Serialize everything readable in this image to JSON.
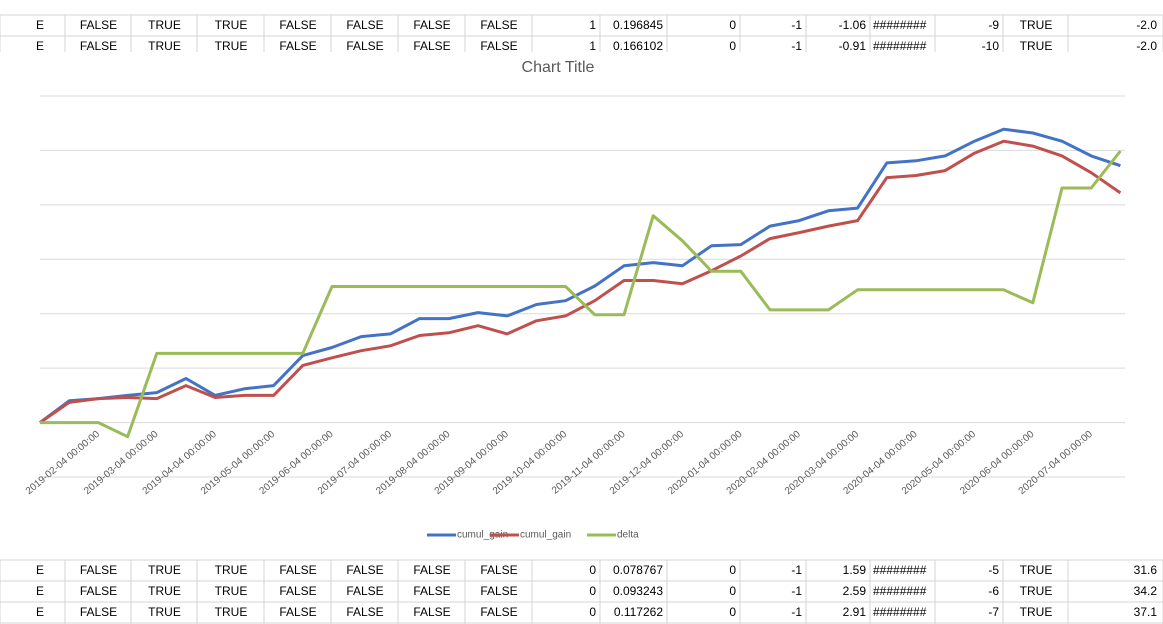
{
  "table": {
    "rows": [
      [
        "E",
        "FALSE",
        "TRUE",
        "TRUE",
        "FALSE",
        "FALSE",
        "FALSE",
        "FALSE",
        "1",
        "0.196845",
        "0",
        "-1",
        "-1.06",
        "########",
        "-9",
        "TRUE",
        "-2.0"
      ],
      [
        "E",
        "FALSE",
        "TRUE",
        "TRUE",
        "FALSE",
        "FALSE",
        "FALSE",
        "FALSE",
        "1",
        "0.166102",
        "0",
        "-1",
        "-0.91",
        "########",
        "-10",
        "TRUE",
        "-2.0"
      ],
      [
        "E",
        "FALSE",
        "TRUE",
        "TRUE",
        "FALSE",
        "FALSE",
        "FALSE",
        "FALSE",
        "0",
        "0.078767",
        "0",
        "-1",
        "1.59",
        "########",
        "-5",
        "TRUE",
        "31.6"
      ],
      [
        "E",
        "FALSE",
        "TRUE",
        "TRUE",
        "FALSE",
        "FALSE",
        "FALSE",
        "FALSE",
        "0",
        "0.093243",
        "0",
        "-1",
        "2.59",
        "########",
        "-6",
        "TRUE",
        "34.2"
      ],
      [
        "E",
        "FALSE",
        "TRUE",
        "TRUE",
        "FALSE",
        "FALSE",
        "FALSE",
        "FALSE",
        "0",
        "0.117262",
        "0",
        "-1",
        "2.91",
        "########",
        "-7",
        "TRUE",
        "37.1"
      ]
    ]
  },
  "chart_data": {
    "type": "line",
    "title": "Chart Title",
    "categories": [
      null,
      null,
      "2019-02-04 00:00:00",
      null,
      "2019-03-04 00:00:00",
      null,
      "2019-04-04 00:00:00",
      null,
      "2019-05-04 00:00:00",
      null,
      "2019-06-04 00:00:00",
      null,
      "2019-07-04 00:00:00",
      null,
      "2019-08-04 00:00:00",
      null,
      "2019-09-04 00:00:00",
      null,
      "2019-10-04 00:00:00",
      null,
      "2019-11-04 00:00:00",
      null,
      "2019-12-04 00:00:00",
      null,
      "2020-01-04 00:00:00",
      null,
      "2020-02-04 00:00:00",
      null,
      "2020-03-04 00:00:00",
      null,
      "2020-04-04 00:00:00",
      null,
      "2020-05-04 00:00:00",
      null,
      "2020-06-04 00:00:00",
      null,
      "2020-07-04 00:00:00",
      null
    ],
    "series": [
      {
        "name": "cumul_gain",
        "color": "#4472c4",
        "values": [
          0,
          0.4,
          0.44,
          0.5,
          0.55,
          0.81,
          0.5,
          0.62,
          0.68,
          1.23,
          1.38,
          1.58,
          1.63,
          1.91,
          1.91,
          2.02,
          1.96,
          2.17,
          2.24,
          2.51,
          2.88,
          2.94,
          2.88,
          3.25,
          3.27,
          3.61,
          3.71,
          3.89,
          3.94,
          4.77,
          4.81,
          4.9,
          5.17,
          5.39,
          5.32,
          5.17,
          4.9,
          4.72
        ]
      },
      {
        "name": "cumul_gain",
        "color": "#c0504d",
        "values": [
          0,
          0.37,
          0.44,
          0.46,
          0.44,
          0.68,
          0.46,
          0.5,
          0.5,
          1.05,
          1.19,
          1.32,
          1.41,
          1.6,
          1.65,
          1.78,
          1.63,
          1.87,
          1.96,
          2.24,
          2.61,
          2.61,
          2.55,
          2.79,
          3.06,
          3.38,
          3.49,
          3.61,
          3.71,
          4.5,
          4.54,
          4.63,
          4.95,
          5.17,
          5.08,
          4.9,
          4.59,
          4.22
        ]
      },
      {
        "name": "delta",
        "color": "#9bbb59",
        "values": [
          0,
          0,
          0,
          -0.26,
          1.27,
          1.27,
          1.27,
          1.27,
          1.27,
          1.27,
          2.5,
          2.5,
          2.5,
          2.5,
          2.5,
          2.5,
          2.5,
          2.5,
          2.5,
          1.98,
          1.98,
          3.8,
          3.34,
          2.78,
          2.78,
          2.07,
          2.07,
          2.07,
          2.44,
          2.44,
          2.44,
          2.44,
          2.44,
          2.44,
          2.2,
          4.31,
          4.31,
          4.99
        ]
      }
    ],
    "ylim": [
      -1,
      6
    ],
    "ygrid": [
      -1,
      0,
      1,
      2,
      3,
      4,
      5,
      6
    ],
    "grid": true
  }
}
